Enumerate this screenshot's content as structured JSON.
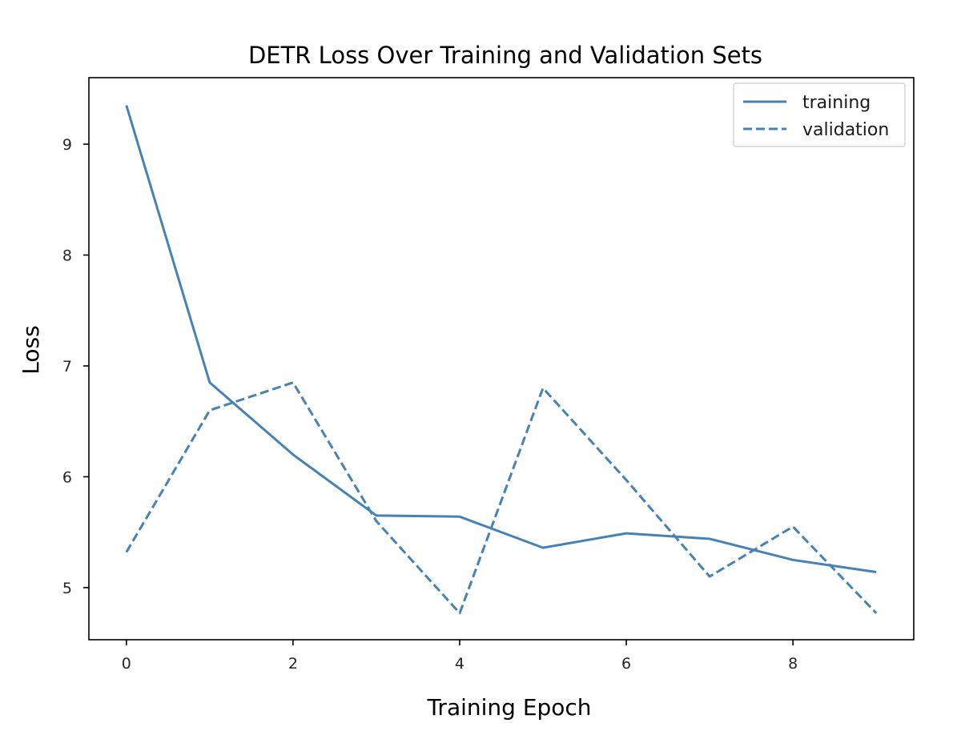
{
  "chart_data": {
    "type": "line",
    "title": "DETR Loss Over Training and Validation Sets",
    "xlabel": "Training Epoch",
    "ylabel": "Loss",
    "x": [
      0,
      1,
      2,
      3,
      4,
      5,
      6,
      7,
      8,
      9
    ],
    "xlim": [
      -0.45,
      9.45
    ],
    "ylim": [
      4.53,
      9.6
    ],
    "xticks": [
      0,
      2,
      4,
      6,
      8
    ],
    "yticks": [
      5,
      6,
      7,
      8,
      9
    ],
    "grid": false,
    "legend_position": "top-right",
    "color": "#4682b4",
    "series": [
      {
        "name": "training",
        "style": "solid",
        "values": [
          9.35,
          6.85,
          6.2,
          5.65,
          5.64,
          5.36,
          5.49,
          5.44,
          5.25,
          5.14
        ]
      },
      {
        "name": "validation",
        "style": "dashed",
        "values": [
          5.32,
          6.6,
          6.85,
          5.6,
          4.77,
          6.8,
          5.97,
          5.1,
          5.55,
          4.77
        ]
      }
    ]
  }
}
